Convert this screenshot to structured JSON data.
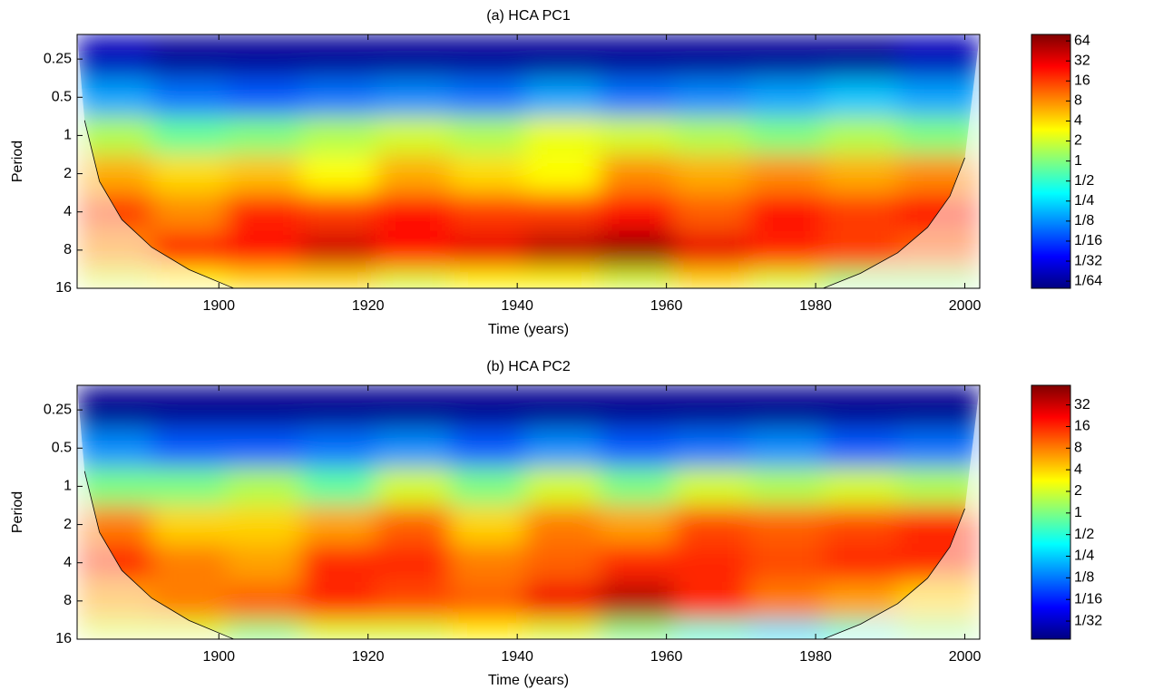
{
  "chart_data": [
    {
      "type": "heatmap",
      "title": "(a) HCA PC1",
      "xlabel": "Time (years)",
      "ylabel": "Period",
      "x": [
        1886,
        1896,
        1906,
        1916,
        1926,
        1936,
        1946,
        1956,
        1966,
        1976,
        1986,
        1996
      ],
      "periods": [
        0.25,
        0.5,
        1,
        2,
        4,
        8,
        16
      ],
      "power": [
        [
          0.02,
          0.015,
          0.015,
          0.015,
          0.015,
          0.015,
          0.015,
          0.015,
          0.015,
          0.015,
          0.015,
          0.02
        ],
        [
          0.15,
          0.1,
          0.08,
          0.1,
          0.12,
          0.1,
          0.15,
          0.1,
          0.12,
          0.15,
          0.2,
          0.15
        ],
        [
          1.5,
          0.8,
          1,
          1.5,
          2,
          1.5,
          2.5,
          2,
          1.5,
          1,
          1.5,
          1
        ],
        [
          6,
          4,
          5,
          3,
          6,
          4,
          3,
          8,
          6,
          8,
          6,
          8
        ],
        [
          16,
          8,
          20,
          16,
          24,
          16,
          16,
          24,
          12,
          24,
          16,
          24
        ],
        [
          8,
          20,
          24,
          40,
          24,
          32,
          48,
          64,
          32,
          20,
          16,
          12
        ],
        [
          2,
          3,
          4,
          4,
          2,
          3,
          3,
          2,
          4,
          2,
          1,
          1
        ]
      ],
      "coi_x": [
        1882,
        1884,
        1887,
        1891,
        1896,
        1902,
        1981,
        1986,
        1991,
        1995,
        1998,
        2000
      ],
      "coi_period": [
        0.76,
        2.3,
        4.6,
        7.6,
        11.4,
        16,
        16,
        12.2,
        8.4,
        5.3,
        3.0,
        1.5
      ],
      "xlim": [
        1881,
        2002
      ],
      "xticks": [
        1900,
        1920,
        1940,
        1960,
        1980,
        2000
      ],
      "ylim": [
        0.16,
        16
      ],
      "yticks": [
        0.25,
        0.5,
        1,
        2,
        4,
        8,
        16
      ],
      "log_y": true,
      "clim": [
        0.0122,
        80
      ],
      "cticks": [
        {
          "value": 0.015625,
          "label": "1/64"
        },
        {
          "value": 0.03125,
          "label": "1/32"
        },
        {
          "value": 0.0625,
          "label": "1/16"
        },
        {
          "value": 0.125,
          "label": "1/8"
        },
        {
          "value": 0.25,
          "label": "1/4"
        },
        {
          "value": 0.5,
          "label": "1/2"
        },
        1,
        2,
        4,
        8,
        16,
        32,
        64
      ]
    },
    {
      "type": "heatmap",
      "title": "(b) HCA PC2",
      "xlabel": "Time (years)",
      "ylabel": "Period",
      "x": [
        1886,
        1896,
        1906,
        1916,
        1926,
        1936,
        1946,
        1956,
        1966,
        1976,
        1986,
        1996
      ],
      "periods": [
        0.25,
        0.5,
        1,
        2,
        4,
        8,
        16
      ],
      "power": [
        [
          0.02,
          0.02,
          0.02,
          0.02,
          0.02,
          0.02,
          0.02,
          0.02,
          0.02,
          0.02,
          0.02,
          0.02
        ],
        [
          0.15,
          0.1,
          0.1,
          0.12,
          0.15,
          0.1,
          0.15,
          0.1,
          0.12,
          0.15,
          0.1,
          0.12
        ],
        [
          1,
          1,
          1.5,
          0.8,
          2,
          1,
          2,
          1,
          2,
          1.5,
          2,
          1.5
        ],
        [
          8,
          4,
          4,
          6,
          10,
          4,
          8,
          6,
          12,
          10,
          12,
          16
        ],
        [
          16,
          8,
          6,
          16,
          16,
          8,
          10,
          16,
          16,
          12,
          16,
          16
        ],
        [
          6,
          8,
          10,
          16,
          12,
          10,
          24,
          40,
          16,
          8,
          6,
          4
        ],
        [
          2,
          2,
          1,
          2,
          2,
          3,
          2,
          1,
          0.5,
          0.3,
          0.5,
          1
        ]
      ],
      "coi_x": [
        1882,
        1884,
        1887,
        1891,
        1896,
        1902,
        1981,
        1986,
        1991,
        1995,
        1998,
        2000
      ],
      "coi_period": [
        0.76,
        2.3,
        4.6,
        7.6,
        11.4,
        16,
        16,
        12.2,
        8.4,
        5.3,
        3.0,
        1.5
      ],
      "xlim": [
        1881,
        2002
      ],
      "xticks": [
        1900,
        1920,
        1940,
        1960,
        1980,
        2000
      ],
      "ylim": [
        0.16,
        16
      ],
      "yticks": [
        0.25,
        0.5,
        1,
        2,
        4,
        8,
        16
      ],
      "log_y": true,
      "clim": [
        0.0175,
        60
      ],
      "cticks": [
        {
          "value": 0.03125,
          "label": "1/32"
        },
        {
          "value": 0.0625,
          "label": "1/16"
        },
        {
          "value": 0.125,
          "label": "1/8"
        },
        {
          "value": 0.25,
          "label": "1/4"
        },
        {
          "value": 0.5,
          "label": "1/2"
        },
        1,
        2,
        4,
        8,
        16,
        32
      ]
    }
  ]
}
